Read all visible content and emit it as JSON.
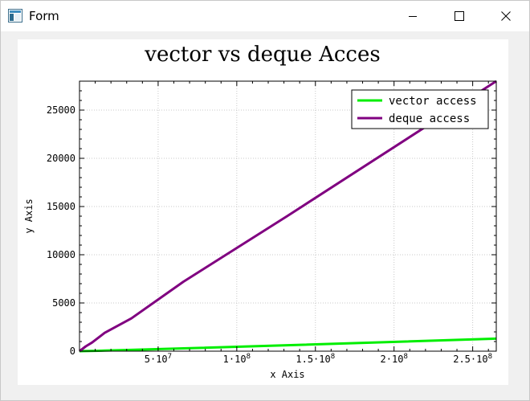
{
  "window": {
    "title": "Form",
    "icon": "app-window-icon",
    "controls": [
      "minimize-icon",
      "maximize-icon",
      "close-icon"
    ]
  },
  "chart_data": {
    "type": "line",
    "title": "vector vs deque Acces",
    "xlabel": "x Axis",
    "ylabel": "y Axis",
    "xlim": [
      0,
      265000000
    ],
    "ylim": [
      0,
      28000
    ],
    "x_ticks": [
      {
        "value": 50000000,
        "mantissa": "5",
        "exponent": "7"
      },
      {
        "value": 100000000,
        "mantissa": "1",
        "exponent": "8"
      },
      {
        "value": 150000000,
        "mantissa": "1.5",
        "exponent": "8"
      },
      {
        "value": 200000000,
        "mantissa": "2",
        "exponent": "8"
      },
      {
        "value": 250000000,
        "mantissa": "2.5",
        "exponent": "8"
      }
    ],
    "y_ticks": [
      0,
      5000,
      10000,
      15000,
      20000,
      25000
    ],
    "grid": true,
    "legend": "top-right",
    "series": [
      {
        "name": "vector access",
        "color": "#00ee00",
        "x": [
          0,
          16000000,
          33000000,
          66000000,
          132000000,
          265000000
        ],
        "y": [
          0,
          60,
          130,
          290,
          620,
          1300
        ]
      },
      {
        "name": "deque access",
        "color": "#800080",
        "x": [
          0,
          4000000,
          8000000,
          16000000,
          33000000,
          66000000,
          132000000,
          265000000
        ],
        "y": [
          0,
          500,
          900,
          1900,
          3400,
          7200,
          14000,
          28000
        ]
      }
    ]
  }
}
